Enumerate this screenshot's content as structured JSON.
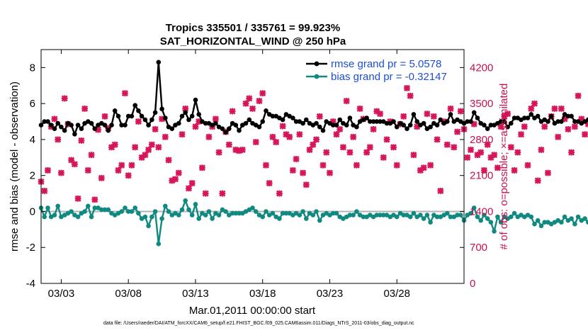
{
  "chart_data": {
    "type": "line",
    "title": "Tropics 335501 / 335761 = 99.923%",
    "subtitle": "SAT_HORIZONTAL_WIND @ 250 hPa",
    "xlabel": "Mar.01,2011 00:00:00 start",
    "ylabel_left": "rmse and bias (model - observation)",
    "ylabel_right": "# of obs: o=possible; ×=assimilated",
    "footer": "data file: /Users/raeder/DAI/ATM_forcXX/CAM6_setup/f.e21.FHIST_BGC.f09_025.CAM6assim.011/Diags_NTrS_2011-03/obs_diag_output.nc",
    "x_range": [
      1.5,
      33.0
    ],
    "y_left_range": [
      -4,
      9
    ],
    "y_right_range": [
      0,
      4550
    ],
    "x_ticks": [
      3,
      8,
      13,
      18,
      23,
      28
    ],
    "x_tick_labels": [
      "03/03",
      "03/08",
      "03/13",
      "03/18",
      "03/23",
      "03/28"
    ],
    "y_left_ticks": [
      -4,
      -2,
      0,
      2,
      4,
      6,
      8
    ],
    "y_left_tick_labels": [
      "-4",
      "-2",
      "0",
      "2",
      "4",
      "6",
      "8"
    ],
    "y_right_ticks": [
      0,
      700,
      1400,
      2100,
      2800,
      3500,
      4200
    ],
    "y_right_tick_labels": [
      "0",
      "700",
      "1400",
      "2100",
      "2800",
      "3500",
      "4200"
    ],
    "x_start": 1.5,
    "x_step": 0.25,
    "series": [
      {
        "name": "rmse grand pr = 5.0578",
        "color": "#000000",
        "axis": "left",
        "values": [
          4.8,
          5.0,
          5.0,
          4.8,
          4.6,
          4.9,
          4.7,
          4.5,
          4.9,
          4.8,
          4.3,
          4.8,
          4.6,
          4.9,
          5.0,
          4.9,
          4.6,
          4.8,
          4.9,
          4.8,
          4.5,
          4.8,
          5.6,
          5.3,
          4.8,
          4.8,
          5.3,
          5.3,
          5.9,
          5.6,
          5.3,
          5.1,
          4.8,
          5.1,
          5.5,
          8.3,
          5.7,
          5.2,
          4.7,
          4.6,
          4.8,
          4.9,
          5.3,
          5.5,
          5.1,
          5.3,
          6.2,
          5.4,
          5.0,
          4.9,
          4.9,
          4.8,
          4.9,
          4.7,
          4.6,
          4.4,
          4.6,
          4.9,
          4.8,
          4.5,
          4.8,
          4.9,
          5.1,
          4.9,
          4.8,
          4.7,
          5.0,
          5.6,
          5.4,
          5.3,
          5.3,
          5.2,
          5.1,
          5.4,
          5.3,
          5.2,
          5.0,
          5.0,
          4.9,
          5.1,
          4.9,
          4.8,
          4.9,
          4.7,
          4.5,
          5.0,
          4.9,
          4.8,
          4.8,
          5.1,
          4.9,
          4.8,
          5.2,
          4.8,
          4.7,
          5.0,
          5.1,
          5.2,
          5.0,
          5.0,
          5.0,
          5.0,
          5.0,
          4.9,
          4.9,
          5.0,
          4.7,
          4.9,
          4.8,
          4.6,
          4.8,
          5.4,
          5.0,
          4.8,
          4.9,
          4.6,
          4.7,
          4.9,
          4.8,
          5.1,
          4.9,
          5.0,
          5.4,
          5.0,
          5.1,
          5.0,
          4.9,
          5.0,
          5.0,
          5.5,
          5.2,
          4.9,
          4.8,
          4.6,
          4.8,
          4.8,
          4.9,
          5.0,
          5.0,
          4.7,
          4.9,
          5.2,
          5.2,
          5.1,
          5.2,
          5.2,
          5.4,
          5.2,
          5.3,
          5.0,
          5.1,
          5.0,
          5.3,
          4.9,
          5.0,
          5.0,
          5.4,
          5.3,
          5.3,
          5.0,
          5.0,
          4.9,
          5.0,
          5.1,
          5.5,
          5.4,
          5.2,
          5.0,
          4.9
        ]
      },
      {
        "name": "bias grand pr = -0.32147",
        "color": "#108a80",
        "axis": "left",
        "values": [
          0.2,
          -0.3,
          0.2,
          -0.3,
          -0.2,
          0.3,
          -0.3,
          -0.2,
          -0.1,
          0.0,
          -0.2,
          -0.3,
          -0.1,
          0.0,
          0.3,
          -0.3,
          0.2,
          0.2,
          0.1,
          0.1,
          0.1,
          -0.1,
          -0.2,
          -0.1,
          0.0,
          0.2,
          0.0,
          0.0,
          0.2,
          -0.1,
          -0.4,
          -0.3,
          -0.8,
          -0.3,
          0.0,
          -1.8,
          -0.4,
          0.3,
          0.0,
          -0.2,
          -0.1,
          -0.2,
          0.1,
          0.6,
          0.1,
          -0.2,
          0.4,
          -0.4,
          -0.1,
          -0.2,
          0.0,
          -0.4,
          -0.1,
          -0.2,
          0.1,
          0.0,
          -0.2,
          -0.1,
          -0.1,
          -0.1,
          -0.1,
          0.0,
          0.1,
          0.2,
          0.0,
          -0.2,
          -0.3,
          0.0,
          -0.2,
          -0.1,
          -0.3,
          -0.4,
          -0.1,
          -0.1,
          -0.1,
          -0.2,
          -0.1,
          -0.2,
          0.0,
          -0.4,
          -0.1,
          -0.2,
          0.0,
          -0.5,
          -0.2,
          -0.1,
          -0.2,
          -0.1,
          -0.1,
          -0.3,
          -0.4,
          -0.3,
          -0.2,
          -0.2,
          0.0,
          -0.2,
          -0.3,
          -0.3,
          -0.2,
          -0.3,
          -0.2,
          -0.2,
          -0.2,
          -0.2,
          -0.3,
          -0.2,
          -0.3,
          -0.1,
          -0.2,
          -0.2,
          -0.3,
          -0.1,
          -0.3,
          -0.2,
          -0.4,
          -0.2,
          -0.6,
          -0.2,
          -0.3,
          -0.3,
          -0.2,
          -0.1,
          -0.3,
          -0.3,
          -0.2,
          -0.2,
          -0.5,
          -0.2,
          -0.1,
          0.2,
          -0.3,
          -0.5,
          -0.2,
          -0.4,
          -0.6,
          -1.1,
          -0.3,
          -0.6,
          -0.3,
          -0.4,
          -0.3,
          -0.1,
          -0.3,
          -0.2,
          -0.3,
          -0.2,
          -0.3,
          -0.7,
          -0.5,
          -0.8,
          -0.6,
          -0.6,
          -0.7,
          -0.6,
          -0.5,
          -0.6,
          -0.3,
          -0.5,
          -0.4,
          -0.7,
          -0.3,
          -0.5,
          -0.4,
          -0.6,
          -0.9,
          -0.8,
          -0.9,
          -0.7,
          -0.7,
          -0.6,
          -0.5,
          -0.5
        ]
      }
    ],
    "observations": {
      "name": "# of obs assimilated",
      "color": "#d6155a",
      "axis": "right",
      "values": [
        1980,
        1800,
        2200,
        3050,
        3200,
        2800,
        2150,
        3600,
        3100,
        2400,
        2320,
        1650,
        2780,
        3400,
        2200,
        2500,
        1630,
        2990,
        2050,
        3250,
        3020,
        2650,
        2700,
        2200,
        2300,
        3700,
        2100,
        2300,
        2650,
        3150,
        2450,
        2500,
        2600,
        2700,
        3000,
        2650,
        3200,
        2850,
        2400,
        2000,
        2030,
        2150,
        2900,
        3400,
        1850,
        1950,
        3050,
        3150,
        2250,
        1750,
        2850,
        3050,
        3200,
        2550,
        1750,
        2950,
        2700,
        3350,
        2600,
        2580,
        2600,
        3500,
        3600,
        3400,
        2750,
        3550,
        3700,
        2300,
        1950,
        2850,
        2750,
        1750,
        3060,
        2900,
        2850,
        2200,
        2420,
        2900,
        2150,
        1920,
        2600,
        2700,
        2800,
        3250,
        2300,
        2550,
        2150,
        3150,
        2900,
        3000,
        2650,
        3550,
        2550,
        2850,
        2300,
        3400,
        3200,
        2550,
        2650,
        3000,
        3350,
        3300,
        2450,
        2800,
        3150,
        2650,
        2300,
        3100,
        3250,
        3800,
        3650,
        2500,
        3050,
        2200,
        2250,
        3300,
        2300,
        3250,
        2800,
        1800,
        3150,
        2700,
        3400,
        2650,
        2950,
        3350,
        3000,
        2450,
        2600,
        3100,
        2500,
        2550,
        2200,
        2700,
        2450,
        2500,
        2250,
        3050,
        3250,
        3300,
        2650,
        2200,
        2550,
        2900,
        3050,
        2300,
        3400,
        3500,
        2000,
        2600,
        3050,
        2150,
        3250,
        3400,
        2850,
        3400,
        3200,
        3000,
        2550,
        3050,
        3650,
        3200,
        2900,
        3100,
        3850,
        2950,
        3500,
        3150,
        3300,
        2800,
        3600,
        3300
      ]
    },
    "legend": [
      {
        "label": "rmse grand pr = 5.0578",
        "color": "#000000",
        "placement": "top-right"
      },
      {
        "label": "bias grand pr = -0.32147",
        "color": "#108a80",
        "placement": "top-right"
      }
    ],
    "zero_line": 0
  }
}
